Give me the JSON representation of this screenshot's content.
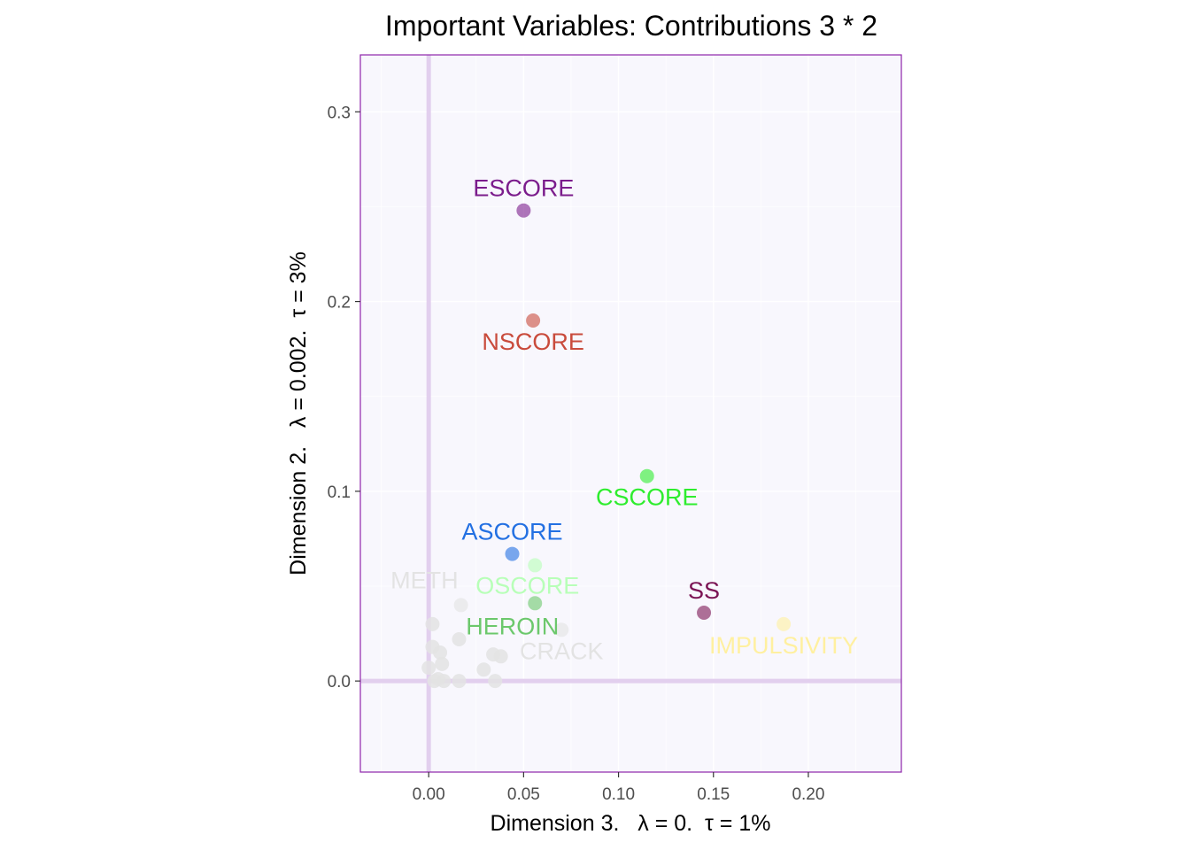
{
  "chart_data": {
    "type": "scatter",
    "title": "Important Variables: Contributions 3 * 2",
    "xlabel": "Dimension 3.   λ = 0.  τ = 1%",
    "ylabel": "Dimension 2.   λ = 0.002.  τ = 3%",
    "xlim": [
      -0.036,
      0.249
    ],
    "ylim": [
      -0.048,
      0.33
    ],
    "x_ticks": [
      0.0,
      0.05,
      0.1,
      0.15,
      0.2
    ],
    "x_tick_labels": [
      "0.00",
      "0.05",
      "0.10",
      "0.15",
      "0.20"
    ],
    "y_ticks": [
      0.0,
      0.1,
      0.2,
      0.3
    ],
    "y_tick_labels": [
      "0.0",
      "0.1",
      "0.2",
      "0.3"
    ],
    "grid": true,
    "reference_lines": {
      "x": 0,
      "y": 0
    },
    "colors": {
      "panel_bg": "#f8f7fd",
      "panel_border": "#8e24aa",
      "grid": "#ffffff",
      "reference": "#e2cfee",
      "unlabeled_point": "#e3e3e3"
    },
    "points": [
      {
        "name": "ESCORE",
        "x": 0.05,
        "y": 0.248,
        "color": "#7b1c8c",
        "label_pos": "above"
      },
      {
        "name": "NSCORE",
        "x": 0.055,
        "y": 0.19,
        "color": "#c94b3c",
        "label_pos": "below"
      },
      {
        "name": "CSCORE",
        "x": 0.115,
        "y": 0.108,
        "color": "#2eed2e",
        "label_pos": "below"
      },
      {
        "name": "ASCORE",
        "x": 0.044,
        "y": 0.067,
        "color": "#2370e2",
        "label_pos": "above"
      },
      {
        "name": "OSCORE",
        "x": 0.056,
        "y": 0.061,
        "color": "#b8ffb8",
        "label_pos": "below-right"
      },
      {
        "name": "HEROIN",
        "x": 0.056,
        "y": 0.041,
        "color": "#6cc86c",
        "label_pos": "below-left"
      },
      {
        "name": "SS",
        "x": 0.145,
        "y": 0.036,
        "color": "#7b1454",
        "label_pos": "above"
      },
      {
        "name": "IMPULSIVITY",
        "x": 0.187,
        "y": 0.03,
        "color": "#fff0a0",
        "label_pos": "below"
      },
      {
        "name": "METH",
        "x": 0.017,
        "y": 0.04,
        "color": "#e3e3e3",
        "label_pos": "above-left"
      },
      {
        "name": "CRACK",
        "x": 0.07,
        "y": 0.027,
        "color": "#e3e3e3",
        "label_pos": "below"
      }
    ],
    "unlabeled_points": [
      {
        "x": 0.002,
        "y": 0.03
      },
      {
        "x": 0.016,
        "y": 0.022
      },
      {
        "x": 0.002,
        "y": 0.018
      },
      {
        "x": 0.006,
        "y": 0.015
      },
      {
        "x": 0.034,
        "y": 0.014
      },
      {
        "x": 0.038,
        "y": 0.013
      },
      {
        "x": 0.007,
        "y": 0.009
      },
      {
        "x": 0.0,
        "y": 0.007
      },
      {
        "x": 0.029,
        "y": 0.006
      },
      {
        "x": 0.005,
        "y": 0.001
      },
      {
        "x": 0.008,
        "y": 0.0
      },
      {
        "x": 0.016,
        "y": 0.0
      },
      {
        "x": 0.035,
        "y": 0.0
      },
      {
        "x": 0.003,
        "y": 0.0
      }
    ]
  }
}
